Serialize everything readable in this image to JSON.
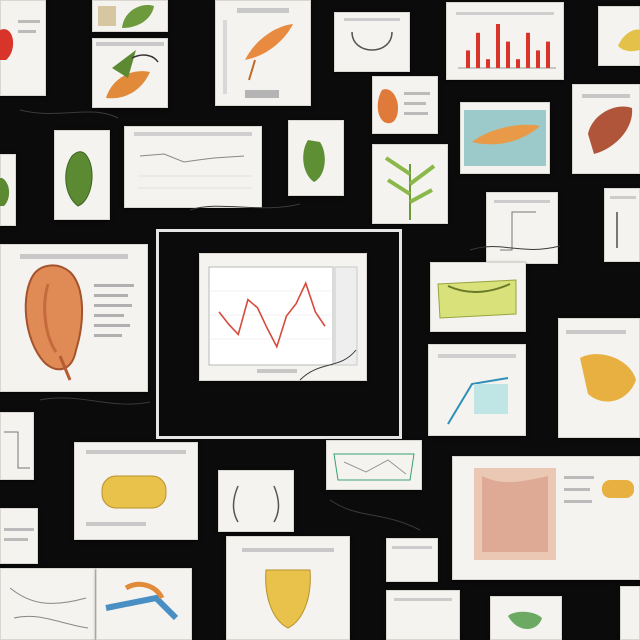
{
  "scene": {
    "description": "",
    "colors": {
      "background": "#0b0b0c",
      "paper": "#f4f3ef",
      "chart_line": "#d84a3c",
      "bar_red": "#d9342a",
      "leaf_green": "#5c8a32",
      "organ_orange": "#e08a55",
      "corn_yellow": "#e8c24a"
    }
  },
  "central_chart": {
    "title": "",
    "series": [
      {
        "name": "",
        "values": [
          3.2,
          2.6,
          2.1,
          3.8,
          3.4,
          2.4,
          1.5,
          3.0,
          3.6,
          4.6,
          3.2,
          2.5
        ]
      }
    ]
  },
  "bar_thumbnail": {
    "values": [
      2,
      4,
      1,
      5,
      3,
      1,
      4,
      2,
      3
    ]
  }
}
